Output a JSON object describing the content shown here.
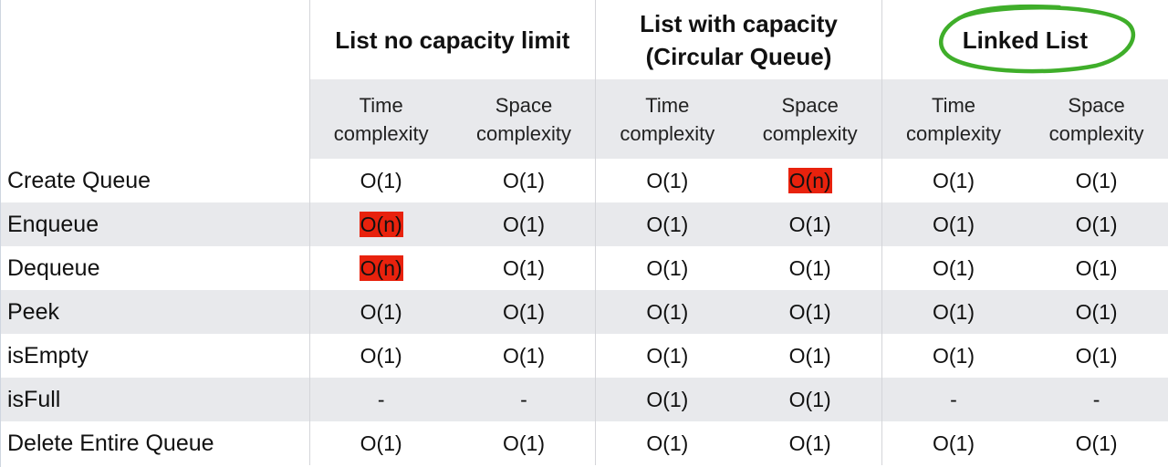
{
  "columns": {
    "groups": [
      {
        "line1": "List no capacity limit",
        "line2": ""
      },
      {
        "line1": "List with capacity",
        "line2": "(Circular Queue)"
      },
      {
        "line1": "Linked List",
        "line2": ""
      }
    ],
    "sub": {
      "time_l1": "Time",
      "time_l2": "complexity",
      "space_l1": "Space",
      "space_l2": "complexity"
    }
  },
  "rows": [
    {
      "op": "Create Queue",
      "v": [
        "O(1)",
        "O(1)",
        "O(1)",
        "O(n)",
        "O(1)",
        "O(1)"
      ]
    },
    {
      "op": "Enqueue",
      "v": [
        "O(n)",
        "O(1)",
        "O(1)",
        "O(1)",
        "O(1)",
        "O(1)"
      ]
    },
    {
      "op": "Dequeue",
      "v": [
        "O(n)",
        "O(1)",
        "O(1)",
        "O(1)",
        "O(1)",
        "O(1)"
      ]
    },
    {
      "op": "Peek",
      "v": [
        "O(1)",
        "O(1)",
        "O(1)",
        "O(1)",
        "O(1)",
        "O(1)"
      ]
    },
    {
      "op": "isEmpty",
      "v": [
        "O(1)",
        "O(1)",
        "O(1)",
        "O(1)",
        "O(1)",
        "O(1)"
      ]
    },
    {
      "op": "isFull",
      "v": [
        "-",
        "-",
        "O(1)",
        "O(1)",
        "-",
        "-"
      ]
    },
    {
      "op": "Delete Entire Queue",
      "v": [
        "O(1)",
        "O(1)",
        "O(1)",
        "O(1)",
        "O(1)",
        "O(1)"
      ]
    }
  ],
  "colors": {
    "highlight": "#e8220d",
    "circle": "#3fae2a",
    "shade": "#e8e9ec"
  }
}
